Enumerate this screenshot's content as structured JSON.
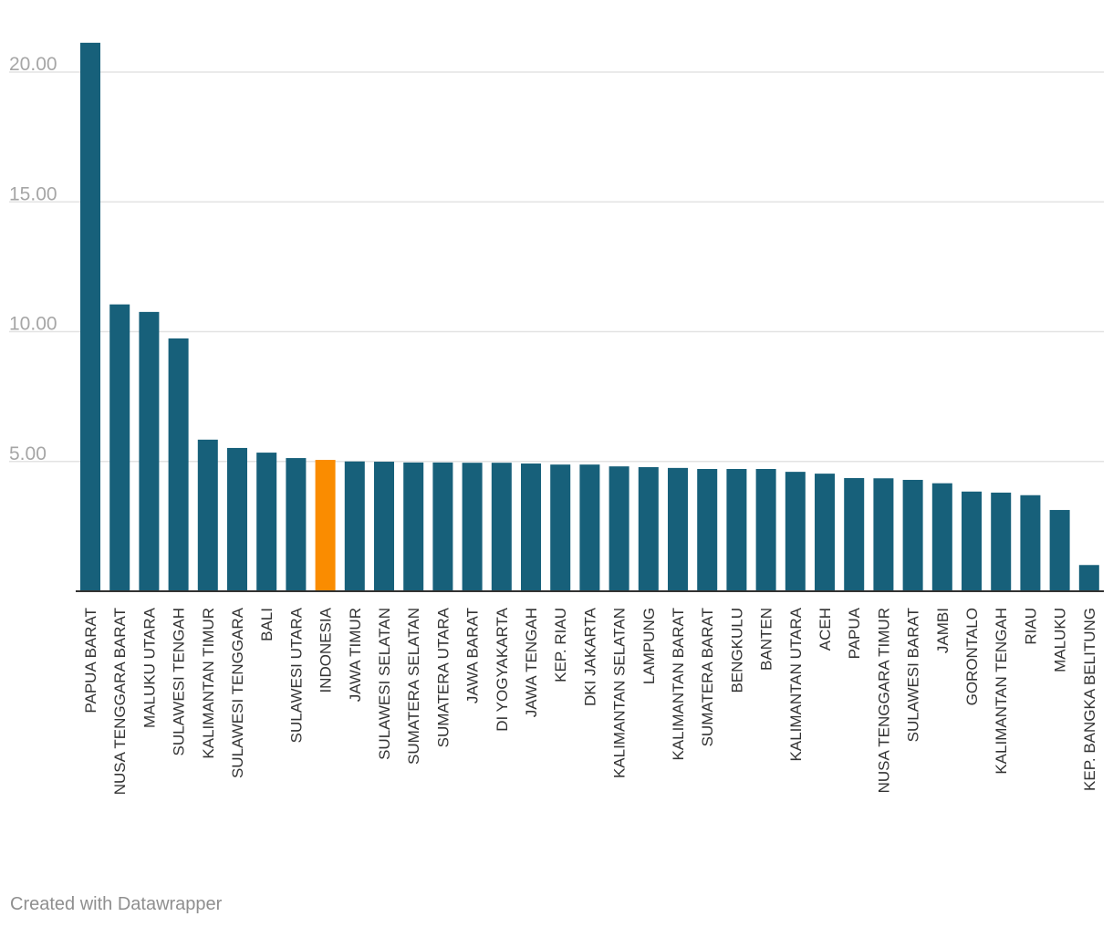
{
  "chart_data": {
    "type": "bar",
    "categories": [
      "PAPUA BARAT",
      "NUSA TENGGARA BARAT",
      "MALUKU UTARA",
      "SULAWESI TENGAH",
      "KALIMANTAN TIMUR",
      "SULAWESI TENGGARA",
      "BALI",
      "SULAWESI UTARA",
      "INDONESIA",
      "JAWA TIMUR",
      "SULAWESI SELATAN",
      "SUMATERA SELATAN",
      "SUMATERA UTARA",
      "JAWA BARAT",
      "DI YOGYAKARTA",
      "JAWA TENGAH",
      "KEP. RIAU",
      "DKI JAKARTA",
      "KALIMANTAN SELATAN",
      "LAMPUNG",
      "KALIMANTAN BARAT",
      "SUMATERA BARAT",
      "BENGKULU",
      "BANTEN",
      "KALIMANTAN UTARA",
      "ACEH",
      "PAPUA",
      "NUSA TENGGARA TIMUR",
      "SULAWESI BARAT",
      "JAMBI",
      "GORONTALO",
      "KALIMANTAN TENGAH",
      "RIAU",
      "MALUKU",
      "KEP. BANGKA BELITUNG"
    ],
    "values": [
      21.13,
      11.05,
      10.76,
      9.74,
      5.84,
      5.52,
      5.34,
      5.13,
      5.06,
      5.0,
      4.99,
      4.96,
      4.96,
      4.95,
      4.95,
      4.92,
      4.88,
      4.88,
      4.81,
      4.78,
      4.75,
      4.71,
      4.71,
      4.71,
      4.6,
      4.53,
      4.36,
      4.35,
      4.29,
      4.16,
      3.84,
      3.8,
      3.7,
      3.13,
      1.01
    ],
    "highlight_category": "INDONESIA",
    "yticks": [
      "5.00",
      "10.00",
      "15.00",
      "20.00"
    ],
    "ylim": [
      0,
      21.5
    ],
    "grid": true,
    "colors": {
      "bar": "#17607a",
      "highlight": "#fa8c00"
    }
  },
  "footer": {
    "credit": "Created with Datawrapper"
  }
}
